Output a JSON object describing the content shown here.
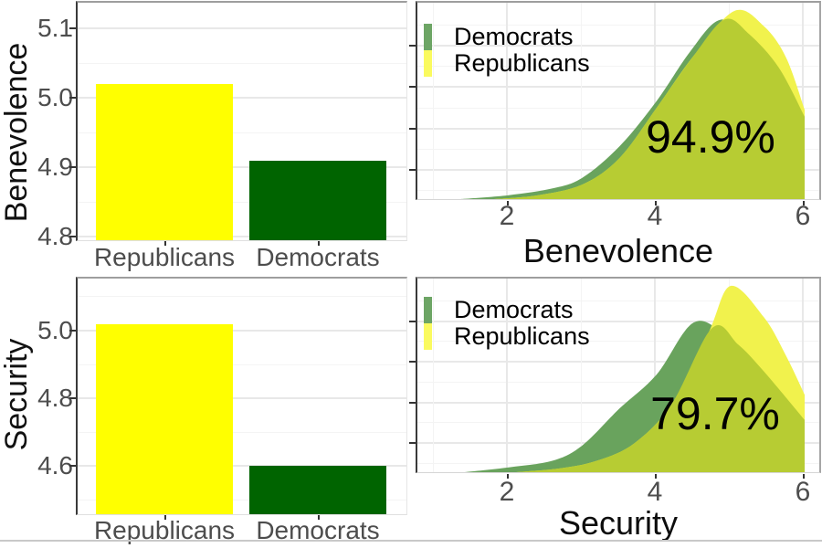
{
  "colors": {
    "republicans_bar": "#FFFF00",
    "democrats_bar": "#006400",
    "density_democrats": "#69A35D",
    "density_republicans": "#F1F24D",
    "density_overlap": "#B7CC33",
    "legend_democrats_key": "#6DA565",
    "legend_republicans_key": "#FAFA5F",
    "tick_label": "#4d4d4d",
    "axis_title": "#111111"
  },
  "legend": {
    "items": [
      {
        "label": "Democrats",
        "key_color": "legend_democrats_key"
      },
      {
        "label": "Republicans",
        "key_color": "legend_republicans_key"
      }
    ]
  },
  "chart_data": [
    {
      "id": "benevolence_by_party",
      "type": "bar",
      "title": "",
      "ylabel": "Benevolence",
      "xlabel": "",
      "categories": [
        "Republicans",
        "Democrats"
      ],
      "values": [
        5.02,
        4.91
      ],
      "bar_colors": [
        "republicans_bar",
        "democrats_bar"
      ],
      "yticks": [
        4.8,
        4.9,
        5.0,
        5.1
      ],
      "ylim": [
        4.795,
        5.137
      ],
      "grid": true,
      "legend_position": "none"
    },
    {
      "id": "benevolence_density_overlap",
      "type": "area",
      "title": "",
      "xlabel": "Benevolence",
      "annotation": "94.9%",
      "xticks": [
        2,
        4,
        6
      ],
      "xlim": [
        0.78,
        6.25
      ],
      "cut_at": 6,
      "grid": true,
      "legend_position": "top-left",
      "series": [
        {
          "name": "Democrats",
          "color": "density_democrats",
          "points": [
            [
              1.35,
              0
            ],
            [
              2,
              0.02
            ],
            [
              2.6,
              0.055
            ],
            [
              3,
              0.11
            ],
            [
              3.5,
              0.27
            ],
            [
              4,
              0.5
            ],
            [
              4.45,
              0.75
            ],
            [
              4.85,
              0.912
            ],
            [
              5.25,
              0.84
            ],
            [
              5.65,
              0.67
            ],
            [
              6,
              0.42
            ]
          ]
        },
        {
          "name": "Republicans",
          "color": "density_republicans",
          "points": [
            [
              1.8,
              0
            ],
            [
              2.4,
              0.02
            ],
            [
              3,
              0.075
            ],
            [
              3.5,
              0.21
            ],
            [
              4,
              0.465
            ],
            [
              4.5,
              0.73
            ],
            [
              5.05,
              0.958
            ],
            [
              5.45,
              0.88
            ],
            [
              5.75,
              0.72
            ],
            [
              6,
              0.455
            ]
          ]
        },
        {
          "name": "Overlap",
          "color": "density_overlap",
          "points": [
            [
              1.8,
              0
            ],
            [
              2.4,
              0.02
            ],
            [
              3,
              0.075
            ],
            [
              3.5,
              0.21
            ],
            [
              4,
              0.465
            ],
            [
              4.5,
              0.73
            ],
            [
              4.92,
              0.915
            ],
            [
              5.25,
              0.84
            ],
            [
              5.65,
              0.67
            ],
            [
              6,
              0.42
            ]
          ]
        }
      ]
    },
    {
      "id": "security_by_party",
      "type": "bar",
      "title": "",
      "ylabel": "Security",
      "xlabel": "",
      "categories": [
        "Republicans",
        "Democrats"
      ],
      "values": [
        5.02,
        4.6
      ],
      "bar_colors": [
        "republicans_bar",
        "democrats_bar"
      ],
      "yticks": [
        4.6,
        4.8,
        5.0
      ],
      "ylim": [
        4.457,
        5.154
      ],
      "grid": true,
      "legend_position": "none"
    },
    {
      "id": "security_density_overlap",
      "type": "area",
      "title": "",
      "xlabel": "Security",
      "annotation": "79.7%",
      "xticks": [
        2,
        4,
        6
      ],
      "xlim": [
        0.78,
        6.25
      ],
      "cut_at": 6,
      "grid": true,
      "legend_position": "top-left",
      "series": [
        {
          "name": "Democrats",
          "color": "density_democrats",
          "points": [
            [
              1.4,
              0
            ],
            [
              2,
              0.025
            ],
            [
              2.6,
              0.06
            ],
            [
              3,
              0.14
            ],
            [
              3.5,
              0.33
            ],
            [
              4,
              0.505
            ],
            [
              4.5,
              0.773
            ],
            [
              4.95,
              0.7
            ],
            [
              5.45,
              0.52
            ],
            [
              6,
              0.27
            ]
          ]
        },
        {
          "name": "Republicans",
          "color": "density_republicans",
          "points": [
            [
              2.1,
              0
            ],
            [
              2.7,
              0.02
            ],
            [
              3.2,
              0.06
            ],
            [
              3.7,
              0.15
            ],
            [
              4.2,
              0.35
            ],
            [
              4.7,
              0.72
            ],
            [
              5,
              0.962
            ],
            [
              5.45,
              0.8
            ],
            [
              5.75,
              0.6
            ],
            [
              6,
              0.4
            ]
          ]
        },
        {
          "name": "Overlap",
          "color": "density_overlap",
          "points": [
            [
              2.1,
              0
            ],
            [
              2.7,
              0.02
            ],
            [
              3.2,
              0.06
            ],
            [
              3.7,
              0.15
            ],
            [
              4.2,
              0.35
            ],
            [
              4.75,
              0.745
            ],
            [
              5.1,
              0.66
            ],
            [
              5.45,
              0.52
            ],
            [
              6,
              0.27
            ]
          ]
        }
      ]
    }
  ]
}
